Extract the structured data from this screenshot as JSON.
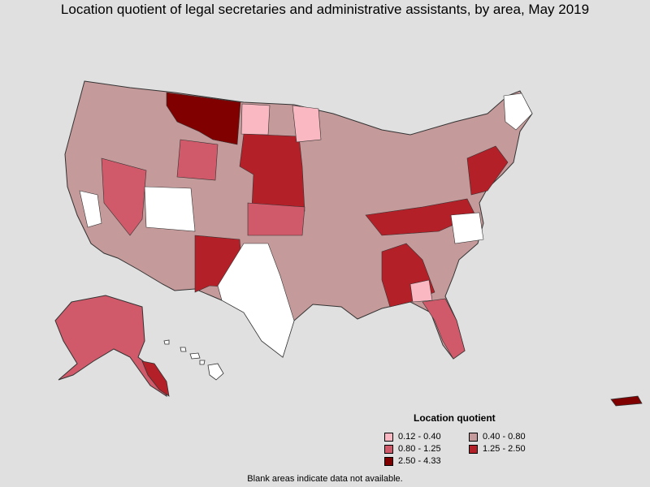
{
  "title": "Location quotient of legal secretaries and administrative assistants, by area, May 2019",
  "legend": {
    "title": "Location quotient",
    "classes": [
      {
        "label": "0.12 - 0.40",
        "color": "#f9b8c2"
      },
      {
        "label": "0.40 - 0.80",
        "color": "#c59a9a"
      },
      {
        "label": "0.80 - 1.25",
        "color": "#d05a6a"
      },
      {
        "label": "1.25 - 2.50",
        "color": "#b42028"
      },
      {
        "label": "2.50 - 4.33",
        "color": "#800000"
      }
    ]
  },
  "footnote": "Blank areas indicate data not available."
}
